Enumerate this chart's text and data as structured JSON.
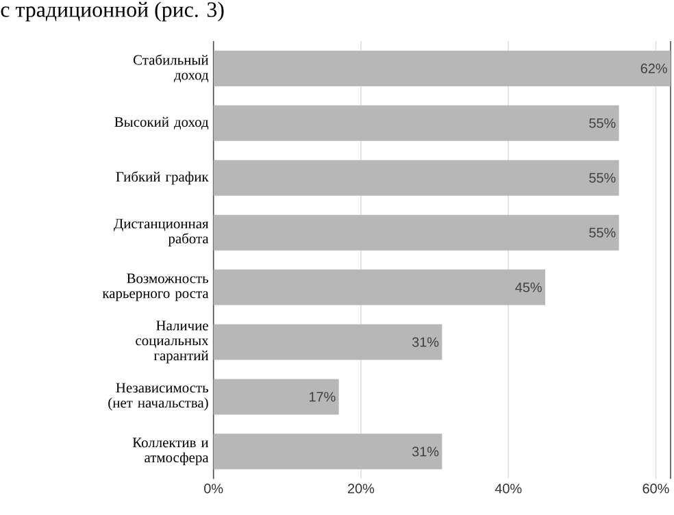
{
  "chart_data": {
    "type": "bar",
    "orientation": "horizontal",
    "annotations": [
      "с традиционной (рис. 3)"
    ],
    "categories": [
      "Стабильный доход",
      "Высокий доход",
      "Гибкий график",
      "Дистанционная работа",
      "Возможность карьерного роста",
      "Наличие социальных гарантий",
      "Независимость (нет начальства)",
      "Коллектив и атмосфера"
    ],
    "values": [
      62,
      55,
      55,
      55,
      45,
      31,
      17,
      31
    ],
    "value_labels": [
      "62%",
      "55%",
      "55%",
      "55%",
      "45%",
      "31%",
      "17%",
      "31%"
    ],
    "color": "#b7b7b7",
    "xlim": [
      0,
      62
    ],
    "xticks": [
      {
        "value": 0,
        "label": "0%"
      },
      {
        "value": 20,
        "label": "20%"
      },
      {
        "value": 40,
        "label": "40%"
      },
      {
        "value": 60,
        "label": "60%"
      }
    ],
    "grid": "x"
  }
}
